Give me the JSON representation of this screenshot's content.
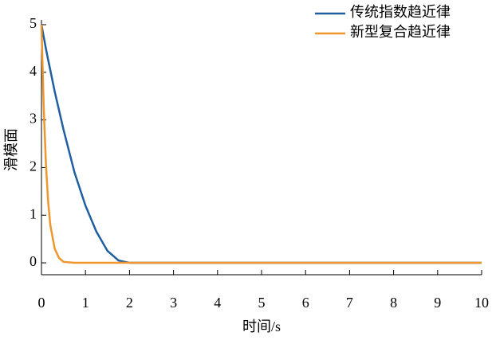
{
  "chart_data": {
    "type": "line",
    "xlabel": "时间/s",
    "ylabel": "滑模面",
    "x": [
      0,
      0.05,
      0.1,
      0.15,
      0.2,
      0.3,
      0.4,
      0.5,
      0.75,
      1,
      1.25,
      1.5,
      1.75,
      2,
      3,
      4,
      5,
      6,
      7,
      8,
      9,
      10
    ],
    "series": [
      {
        "name": "传统指数趋近律",
        "color": "#1f5fa0",
        "values": [
          5,
          4.75,
          4.5,
          4.27,
          4.05,
          3.6,
          3.2,
          2.8,
          1.9,
          1.2,
          0.65,
          0.25,
          0.05,
          0,
          0,
          0,
          0,
          0,
          0,
          0,
          0,
          0
        ]
      },
      {
        "name": "新型复合趋近律",
        "color": "#f0962e",
        "values": [
          5,
          3.3,
          2.1,
          1.3,
          0.8,
          0.3,
          0.1,
          0.02,
          0,
          0,
          0,
          0,
          0,
          0,
          0,
          0,
          0,
          0,
          0,
          0,
          0,
          0
        ]
      }
    ],
    "xlim": [
      0,
      10
    ],
    "xticks": [
      0,
      1,
      2,
      3,
      4,
      5,
      6,
      7,
      8,
      9,
      10
    ],
    "ylim": [
      -0.25,
      5
    ],
    "yticks": [
      0,
      1,
      2,
      3,
      4,
      5
    ],
    "legend": "upper right"
  }
}
